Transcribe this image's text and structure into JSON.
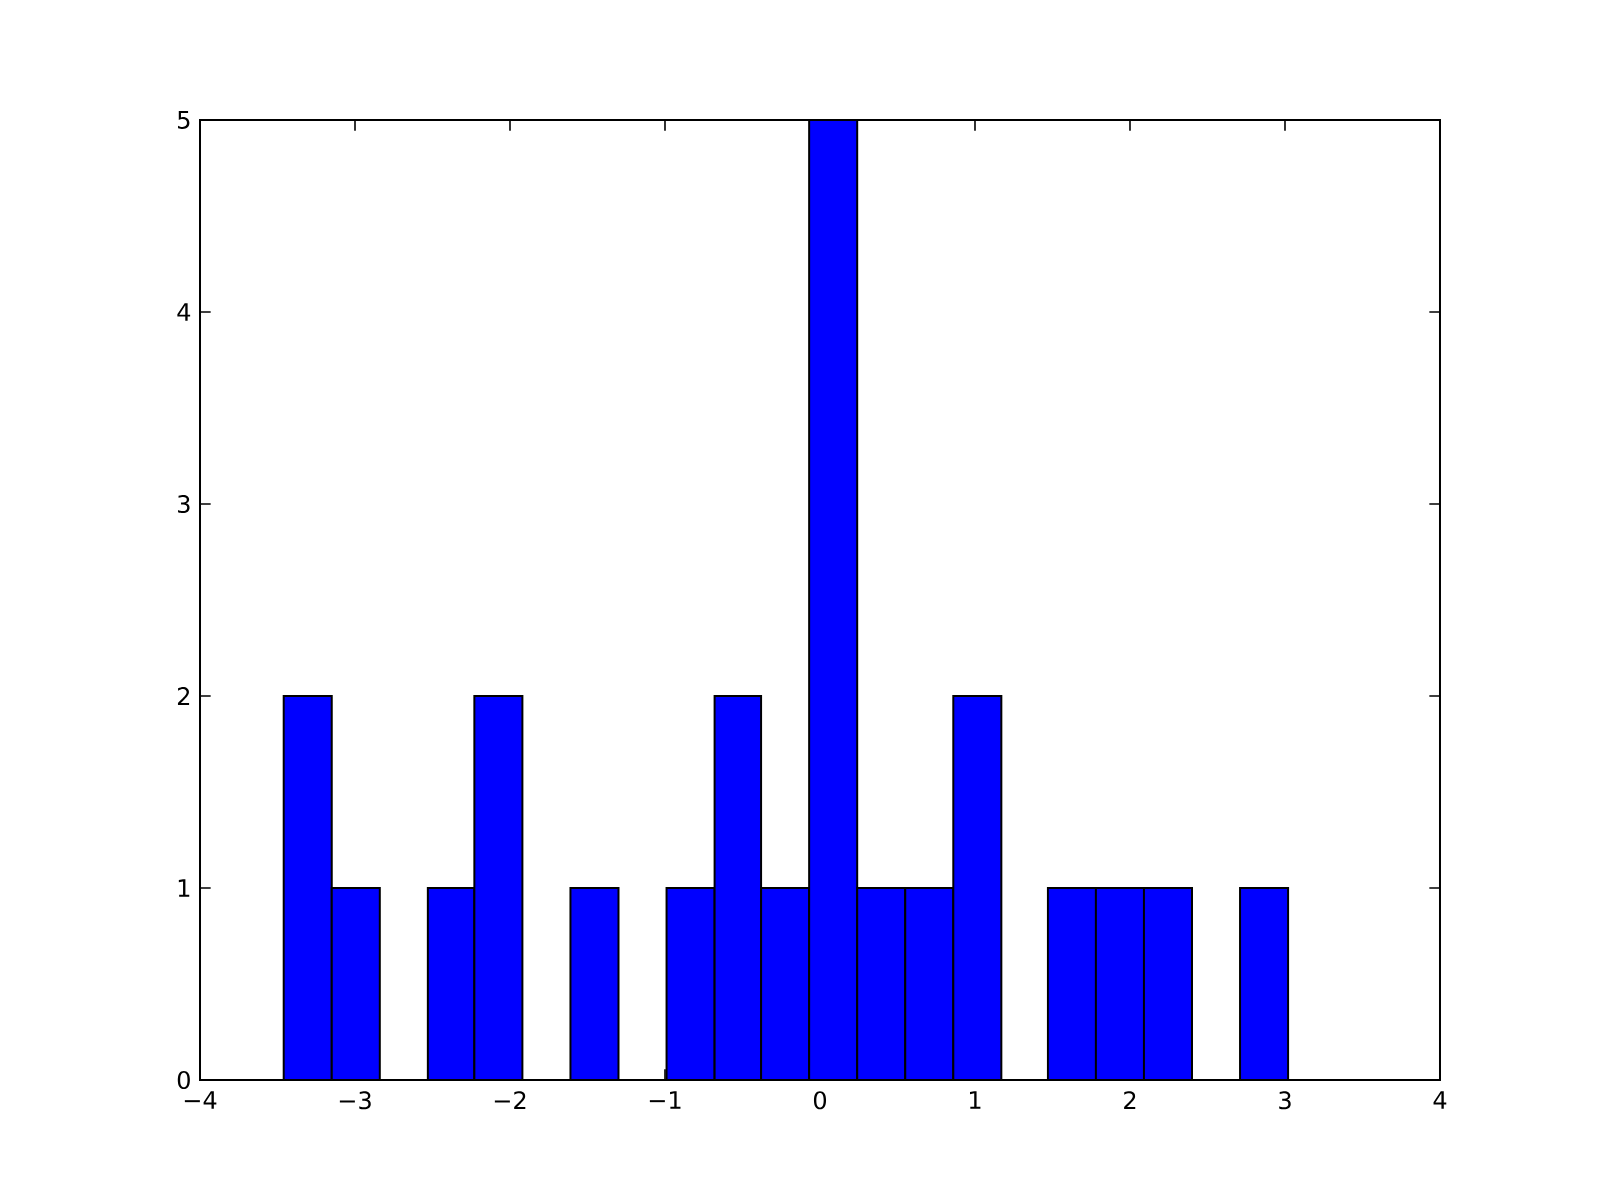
{
  "chart_data": {
    "type": "histogram",
    "color": "#0000ff",
    "bins": [
      -3.46,
      -3.15,
      -2.84,
      -2.53,
      -2.23,
      -1.92,
      -1.61,
      -1.3,
      -0.99,
      -0.68,
      -0.38,
      -0.07,
      0.24,
      0.55,
      0.86,
      1.17,
      1.47,
      1.78,
      2.09,
      2.4,
      2.71,
      3.02
    ],
    "values": [
      2,
      1,
      0,
      1,
      2,
      0,
      1,
      0,
      1,
      2,
      1,
      5,
      1,
      1,
      2,
      0,
      1,
      1,
      1,
      0,
      1
    ],
    "xlim": [
      -4,
      4
    ],
    "ylim": [
      0,
      5
    ],
    "xticks": [
      {
        "value": -4,
        "label": "−4"
      },
      {
        "value": -3,
        "label": "−3"
      },
      {
        "value": -2,
        "label": "−2"
      },
      {
        "value": -1,
        "label": "−1"
      },
      0,
      1,
      2,
      3,
      4
    ],
    "yticks": [
      0,
      1,
      2,
      3,
      4,
      5
    ]
  }
}
